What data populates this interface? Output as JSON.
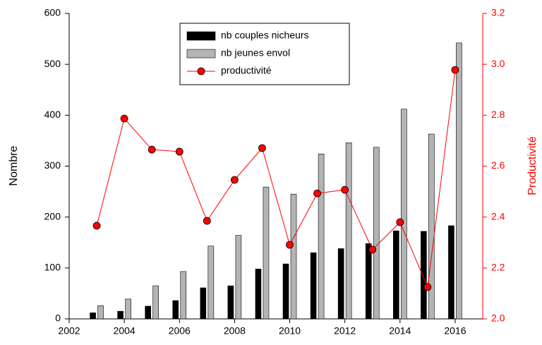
{
  "chart_data": {
    "type": "bar",
    "x": [
      2003,
      2004,
      2005,
      2006,
      2007,
      2008,
      2009,
      2010,
      2011,
      2012,
      2013,
      2014,
      2015,
      2016
    ],
    "series": [
      {
        "name": "nb couples nicheurs",
        "color": "#000000",
        "axis": "y",
        "values": [
          12,
          15,
          25,
          36,
          61,
          65,
          98,
          108,
          130,
          138,
          148,
          173,
          172,
          183
        ]
      },
      {
        "name": "nb jeunes envol",
        "color": "#b4b4b4",
        "axis": "y",
        "values": [
          26,
          39,
          65,
          93,
          143,
          164,
          259,
          245,
          324,
          346,
          337,
          412,
          363,
          542
        ]
      },
      {
        "name": "productivité",
        "color": "#ff0000",
        "axis": "y2",
        "type": "line",
        "values": [
          2.366,
          2.787,
          2.665,
          2.657,
          2.385,
          2.546,
          2.671,
          2.291,
          2.493,
          2.507,
          2.272,
          2.38,
          2.125,
          2.978
        ]
      }
    ],
    "ylabel": "Nombre",
    "y2label": "Productivité",
    "xlim": [
      2002,
      2017
    ],
    "xticks": [
      2002,
      2004,
      2006,
      2008,
      2010,
      2012,
      2014,
      2016
    ],
    "ylim": [
      0,
      600
    ],
    "yticks": [
      0,
      100,
      200,
      300,
      400,
      500,
      600
    ],
    "y2lim": [
      2,
      3.2
    ],
    "y2ticks": [
      {
        "value": 2,
        "label": "2.0"
      },
      {
        "value": 2.2,
        "label": "2.2"
      },
      {
        "value": 2.4,
        "label": "2.4"
      },
      {
        "value": 2.6,
        "label": "2.6"
      },
      {
        "value": 2.8,
        "label": "2.8"
      },
      {
        "value": 3,
        "label": "3.0"
      },
      {
        "value": 3.2,
        "label": "3.2"
      }
    ],
    "legend": "top-center"
  }
}
